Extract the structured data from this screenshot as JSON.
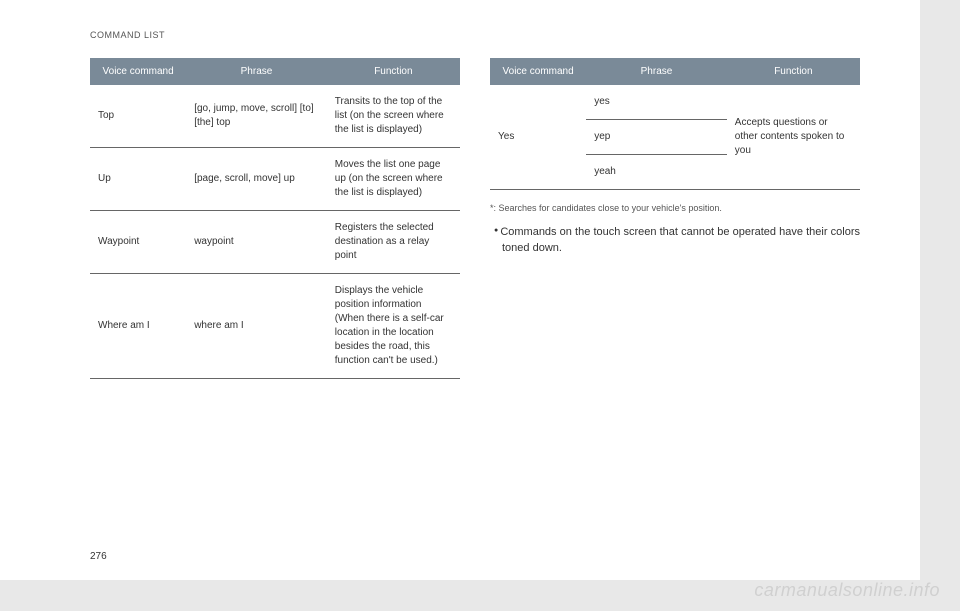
{
  "header": "COMMAND LIST",
  "page_number": "276",
  "watermark": "carmanualsonline.info",
  "colors": {
    "header_bg": "#7a8a98",
    "header_text": "#ffffff",
    "border": "#666666",
    "page_bg": "#ffffff",
    "body_bg": "#e8e8e8",
    "text": "#333333",
    "watermark": "#d0d0d0"
  },
  "left_table": {
    "headers": [
      "Voice command",
      "Phrase",
      "Function"
    ],
    "rows": [
      {
        "voice": "Top",
        "phrase": "[go, jump, move, scroll] [to] [the] top",
        "function": "Transits to the top of the list (on the screen where the list is displayed)"
      },
      {
        "voice": "Up",
        "phrase": "[page, scroll, move] up",
        "function": "Moves the list one page up (on the screen where the list is displayed)"
      },
      {
        "voice": "Waypoint",
        "phrase": "waypoint",
        "function": "Registers the selected destination as a relay point"
      },
      {
        "voice": "Where am I",
        "phrase": "where am I",
        "function": "Displays the vehicle position information (When there is a self-car location in the location besides the road, this function can't be used.)"
      }
    ]
  },
  "right_table": {
    "headers": [
      "Voice command",
      "Phrase",
      "Function"
    ],
    "rows": [
      {
        "voice": "Yes",
        "phrases": [
          "yes",
          "yep",
          "yeah"
        ],
        "function": "Accepts questions or other contents spoken to you"
      }
    ]
  },
  "footnote": "*:   Searches for candidates close to your vehicle's position.",
  "bullet_note": "Commands on the touch screen that cannot be operated have their colors toned down."
}
